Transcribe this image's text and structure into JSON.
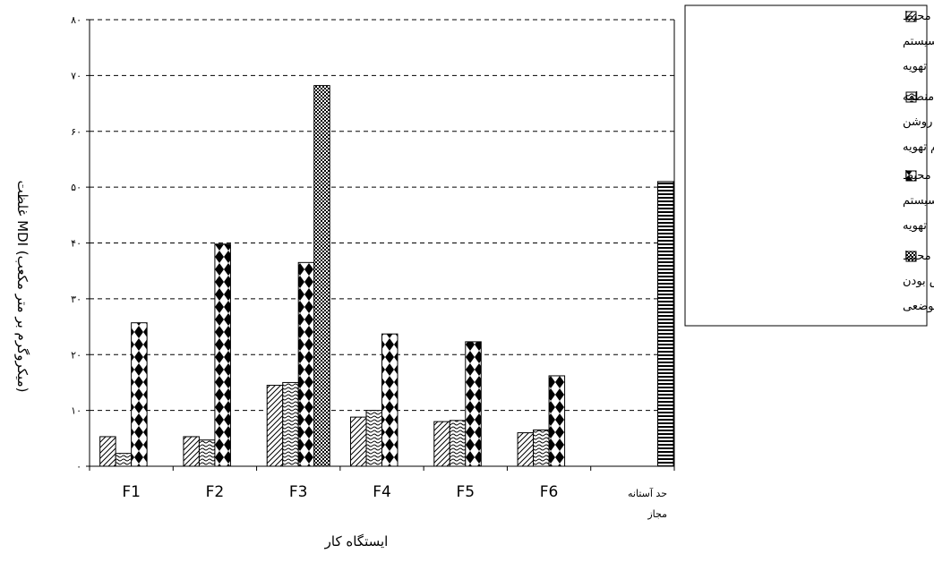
{
  "chart_data": {
    "type": "bar",
    "categories": [
      "F1",
      "F2",
      "F3",
      "F4",
      "F5",
      "F6",
      "حد آستانه مجاز"
    ],
    "category_lines": [
      [
        "F1"
      ],
      [
        "F2"
      ],
      [
        "F3"
      ],
      [
        "F4"
      ],
      [
        "F5"
      ],
      [
        "F6"
      ],
      [
        "حد آستانه",
        "مجاز"
      ]
    ],
    "series": [
      {
        "name": "غلظت MDI در هوای محیط کارهنگام روشن بودن سیستم تهویه",
        "lines": [
          "غلظت MDI در هوای محیط",
          "کارهنگام روشن بودن سیستم",
          "تهویه"
        ],
        "values": [
          5.3,
          5.3,
          14.5,
          8.8,
          8.0,
          6.0,
          null
        ]
      },
      {
        "name": "غلظت MDI در هوای منطقه تنفسی کارگران هنگام روشن بودن سیستم تهویه",
        "lines": [
          "غلظت MDI در هوای منطقه",
          "تنفسی کارگران هنگام روشن",
          "بودن سیستم تهویه"
        ],
        "values": [
          2.3,
          4.7,
          15.0,
          10.0,
          8.2,
          6.5,
          null
        ]
      },
      {
        "name": "غلظت MDI در هوای محیط کارهنگام خاموش بودن سیستم تهویه",
        "lines": [
          "غلظت MDI در هوای محیط",
          "کارهنگام خاموش بودن سیستم",
          "تهویه"
        ],
        "values": [
          25.7,
          39.8,
          36.5,
          23.7,
          22.3,
          16.2,
          null
        ]
      },
      {
        "name": "غلظت MDI در هوای محیط کارهنگام خاموش بودن هواسازها و هواکش های موضعی",
        "lines": [
          "غلظت MDI در هوای محیط",
          "کارهنگام خاموش بودن",
          "هواسازها و هواکش های موضعی"
        ],
        "values": [
          null,
          null,
          68.2,
          null,
          null,
          null,
          51.0
        ]
      }
    ],
    "xlabel": "ایستگاه کار",
    "ylabel": "غلظت MDI (میکروگرم بر متر مکعب)",
    "yticks": [
      "۰",
      "۱۰",
      "۲۰",
      "۳۰",
      "۴۰",
      "۵۰",
      "۶۰",
      "۷۰",
      "۸۰"
    ],
    "ylim": [
      0,
      80
    ],
    "grid": true,
    "legend_position": "right"
  }
}
